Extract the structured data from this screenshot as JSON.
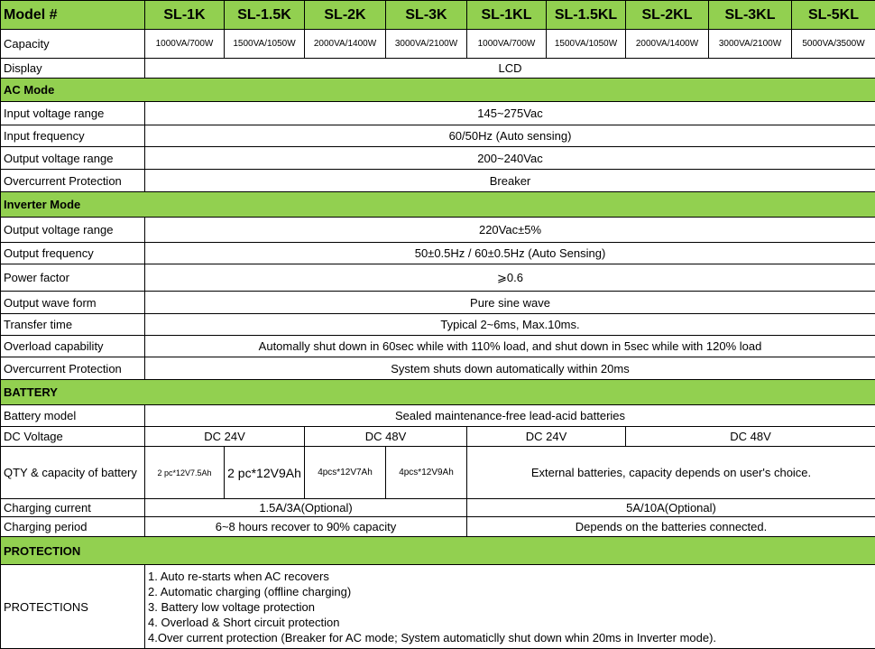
{
  "header": {
    "label": "Model #",
    "models": [
      "SL-1K",
      "SL-1.5K",
      "SL-2K",
      "SL-3K",
      "SL-1KL",
      "SL-1.5KL",
      "SL-2KL",
      "SL-3KL",
      "SL-5KL"
    ]
  },
  "capacity": {
    "label": "Capacity",
    "values": [
      "1000VA/700W",
      "1500VA/1050W",
      "2000VA/1400W",
      "3000VA/2100W",
      "1000VA/700W",
      "1500VA/1050W",
      "2000VA/1400W",
      "3000VA/2100W",
      "5000VA/3500W"
    ]
  },
  "display": {
    "label": "Display",
    "value": "LCD"
  },
  "ac_mode": {
    "title": "AC Mode",
    "rows": [
      {
        "label": "Input voltage range",
        "value": "145~275Vac"
      },
      {
        "label": "Input frequency",
        "value": "60/50Hz (Auto sensing)"
      },
      {
        "label": "Output voltage range",
        "value": "200~240Vac"
      },
      {
        "label": "Overcurrent Protection",
        "value": "Breaker"
      }
    ]
  },
  "inverter_mode": {
    "title": "Inverter Mode",
    "rows": [
      {
        "label": "Output voltage range",
        "value": "220Vac±5%"
      },
      {
        "label": "Output frequency",
        "value": "50±0.5Hz / 60±0.5Hz (Auto Sensing)"
      },
      {
        "label": "Power factor",
        "value": "⩾0.6"
      },
      {
        "label": "Output wave form",
        "value": "Pure sine wave"
      },
      {
        "label": "Transfer time",
        "value": "Typical 2~6ms, Max.10ms."
      },
      {
        "label": "Overload capability",
        "value": "Automally shut down in 60sec while with 110% load, and shut down in 5sec while with 120% load"
      },
      {
        "label": "Overcurrent Protection",
        "value": "System shuts down automatically within 20ms"
      }
    ]
  },
  "battery": {
    "title": "BATTERY",
    "model_label": "Battery model",
    "model_value": "Sealed maintenance-free lead-acid batteries",
    "dc_label": "DC Voltage",
    "dc_values": [
      "DC 24V",
      "DC 48V",
      "DC 24V",
      "DC 48V"
    ],
    "qty_label": "QTY & capacity of battery",
    "qty_values": [
      "2 pc*12V7.5Ah",
      "2 pc*12V9Ah",
      "4pcs*12V7Ah",
      "4pcs*12V9Ah",
      "External batteries, capacity depends on user's choice."
    ],
    "current_label": "Charging current",
    "current_values": [
      "1.5A/3A(Optional)",
      "5A/10A(Optional)"
    ],
    "period_label": "Charging period",
    "period_values": [
      "6~8 hours recover to 90% capacity",
      "Depends on the batteries connected."
    ]
  },
  "protection": {
    "title": "PROTECTION",
    "label": "PROTECTIONS",
    "items": [
      "1. Auto re-starts when AC recovers",
      "2. Automatic charging (offline charging)",
      "3. Battery low voltage protection",
      "4. Overload & Short circuit protection",
      "4.Over current protection (Breaker for AC mode; System automaticlly shut down whin 20ms in Inverter mode)."
    ]
  }
}
